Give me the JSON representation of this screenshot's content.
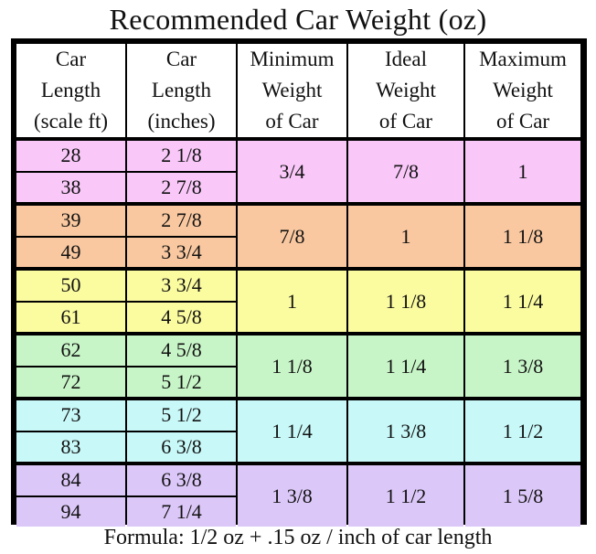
{
  "title": "Recommended Car Weight (oz)",
  "headers": [
    "Car\nLength\n(scale ft)",
    "Car\nLength\n(inches)",
    "Minimum\nWeight\nof Car",
    "Ideal\nWeight\nof Car",
    "Maximum\nWeight\nof Car"
  ],
  "rows": [
    {
      "color": "#f9c8f9",
      "scale_ft": [
        "28",
        "38"
      ],
      "inches": [
        "2 1/8",
        "2 7/8"
      ],
      "min": "3/4",
      "ideal": "7/8",
      "max": "1"
    },
    {
      "color": "#f9c8a0",
      "scale_ft": [
        "39",
        "49"
      ],
      "inches": [
        "2 7/8",
        "3 3/4"
      ],
      "min": "7/8",
      "ideal": "1",
      "max": "1 1/8"
    },
    {
      "color": "#fbfba0",
      "scale_ft": [
        "50",
        "61"
      ],
      "inches": [
        "3 3/4",
        "4 5/8"
      ],
      "min": "1",
      "ideal": "1 1/8",
      "max": "1 1/4"
    },
    {
      "color": "#c8f5c8",
      "scale_ft": [
        "62",
        "72"
      ],
      "inches": [
        "4 5/8",
        "5 1/2"
      ],
      "min": "1 1/8",
      "ideal": "1 1/4",
      "max": "1 3/8"
    },
    {
      "color": "#c8f8f8",
      "scale_ft": [
        "73",
        "83"
      ],
      "inches": [
        "5 1/2",
        "6 3/8"
      ],
      "min": "1 1/4",
      "ideal": "1 3/8",
      "max": "1 1/2"
    },
    {
      "color": "#dcc8f8",
      "scale_ft": [
        "84",
        "94"
      ],
      "inches": [
        "6 3/8",
        "7 1/4"
      ],
      "min": "1 3/8",
      "ideal": "1 1/2",
      "max": "1 5/8"
    }
  ],
  "formula": "Formula: 1/2 oz + .15 oz / inch of car length"
}
